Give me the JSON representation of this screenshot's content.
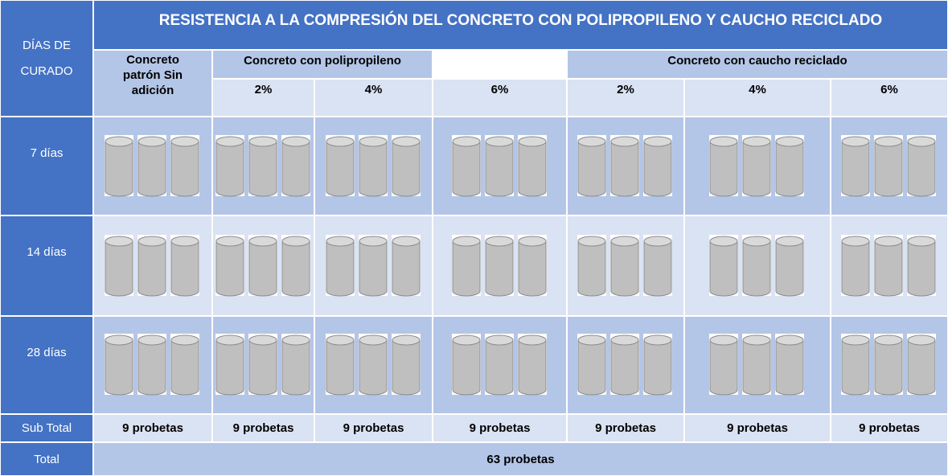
{
  "title": "RESISTENCIA A LA COMPRESIÓN DEL CONCRETO CON POLIPROPILENO Y CAUCHO RECICLADO",
  "row_header": "DÍAS DE CURADO",
  "groups": [
    {
      "label": "Concreto patrón Sin adición"
    },
    {
      "label": "Concreto con polipropileno",
      "percentages": [
        "2%",
        "4%",
        "6%"
      ]
    },
    {
      "label": "Concreto con caucho reciclado",
      "percentages": [
        "2%",
        "4%",
        "6%"
      ]
    }
  ],
  "rows": [
    {
      "label": "7 días"
    },
    {
      "label": "14 días"
    },
    {
      "label": "28 días"
    }
  ],
  "subtotal": {
    "label": "Sub Total",
    "values": [
      "9 probetas",
      "9 probetas",
      "9 probetas",
      "9 probetas",
      "9 probetas",
      "9 probetas",
      "9 probetas"
    ]
  },
  "total": {
    "label": "Total",
    "value": "63 probetas"
  }
}
